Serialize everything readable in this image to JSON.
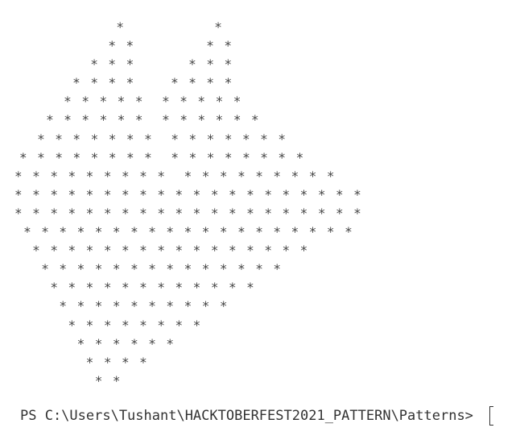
{
  "terminal": {
    "pattern_lines": [
      "    *          *",
      "    * *        * *",
      "   * * *      * * *",
      "  * * * *    * * * *",
      "  * * * * *  * * * * *",
      " * * * * * *  * * * * * *",
      " * * * * * * *  * * * * * * *",
      "* * * * * * * *  * * * * * * * *",
      "* * * * * * * * *  * * * * * * * * *",
      "* * * * * * * * * * * * * * * * * * * *",
      "* * * * * * * * * * * * * * * * * * * *",
      " * * * * * * * * * * * * * * * * * * *",
      "  * * * * * * * * * * * * * * * *",
      "   * * * * * * * * * * * * * *",
      "    * * * * * * * * * * * *",
      "     * * * * * * * * * *",
      "      * * * * * * * *",
      "       * * * * * *",
      "        * * * *",
      "         * *"
    ],
    "prompt": "PS C:\\Users\\Tushant\\HACKTOBERFEST2021_PATTERN\\Patterns> "
  }
}
